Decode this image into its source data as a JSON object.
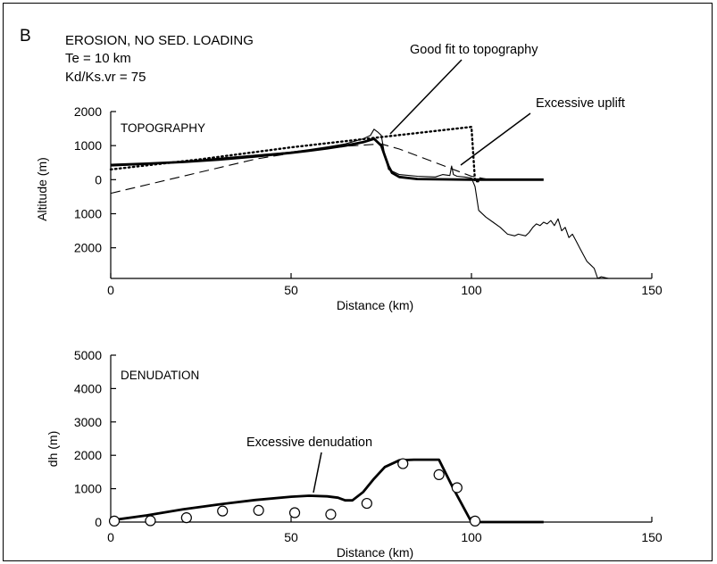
{
  "panel_label": "B",
  "header_lines": [
    "EROSION, NO SED. LOADING",
    "Te = 10 km",
    "Kd/Ks.vr = 75"
  ],
  "chart_data": [
    {
      "type": "line",
      "name": "TOPOGRAPHY",
      "panel_title": "TOPOGRAPHY",
      "xlabel": "Distance (km)",
      "ylabel": "Altitude (m)",
      "xlim": [
        0,
        150
      ],
      "ylim": [
        -2900,
        2000
      ],
      "x_ticks": [
        0,
        50,
        100,
        150
      ],
      "y_ticks": [
        2000,
        1000,
        0,
        -1000,
        -2000
      ],
      "y_tick_labels": [
        "2000",
        "1000",
        "0",
        "1000",
        "2000"
      ],
      "annotations": [
        "Good fit to topography",
        "Excessive uplift"
      ],
      "series": [
        {
          "style": "thin-solid",
          "x": [
            0,
            10,
            20,
            30,
            40,
            50,
            55,
            60,
            65,
            70,
            72,
            73,
            74,
            75,
            76,
            77,
            78,
            80,
            85,
            90,
            92,
            94,
            94.5,
            95,
            96,
            98,
            100,
            101,
            102,
            104,
            106,
            108,
            110,
            112,
            113,
            115,
            116,
            117,
            118,
            119,
            120,
            121,
            122,
            123,
            124,
            125,
            126,
            127,
            128,
            129,
            130,
            131,
            132,
            133,
            134,
            135,
            136,
            138,
            140
          ],
          "y": [
            400,
            450,
            530,
            630,
            720,
            810,
            880,
            960,
            1050,
            1200,
            1300,
            1480,
            1400,
            1300,
            700,
            300,
            250,
            150,
            100,
            80,
            150,
            120,
            400,
            150,
            100,
            80,
            50,
            -200,
            -900,
            -1100,
            -1250,
            -1400,
            -1600,
            -1650,
            -1600,
            -1650,
            -1550,
            -1400,
            -1300,
            -1350,
            -1250,
            -1300,
            -1200,
            -1350,
            -1150,
            -1500,
            -1400,
            -1700,
            -1600,
            -1800,
            -2000,
            -2200,
            -2400,
            -2500,
            -2600,
            -2900,
            -2850,
            -2900,
            -2900
          ]
        },
        {
          "style": "thick-solid",
          "x": [
            0,
            10,
            20,
            30,
            40,
            50,
            55,
            60,
            65,
            70,
            73,
            75,
            76,
            77,
            78,
            80,
            85,
            90,
            100,
            110,
            120
          ],
          "y": [
            430,
            470,
            520,
            590,
            680,
            790,
            850,
            920,
            1000,
            1100,
            1200,
            1000,
            700,
            400,
            200,
            80,
            20,
            10,
            0,
            0,
            0
          ]
        },
        {
          "style": "dotted",
          "x": [
            0,
            25,
            50,
            75,
            100,
            101,
            102
          ],
          "y": [
            300,
            600,
            950,
            1250,
            1550,
            -50,
            -50
          ]
        },
        {
          "style": "dashed",
          "x": [
            0,
            20,
            40,
            60,
            75,
            80,
            85,
            90,
            95,
            100,
            105
          ],
          "y": [
            -400,
            100,
            600,
            950,
            1050,
            900,
            700,
            500,
            300,
            100,
            0
          ]
        }
      ]
    },
    {
      "type": "line",
      "name": "DENUDATION",
      "panel_title": "DENUDATION",
      "xlabel": "Distance (km)",
      "ylabel": "dh (m)",
      "xlim": [
        0,
        150
      ],
      "ylim": [
        0,
        5000
      ],
      "x_ticks": [
        0,
        50,
        100,
        150
      ],
      "y_ticks": [
        0,
        1000,
        2000,
        3000,
        4000,
        5000
      ],
      "annotations": [
        "Excessive denudation"
      ],
      "series": [
        {
          "style": "thick-solid",
          "x": [
            0,
            10,
            20,
            30,
            40,
            50,
            55,
            60,
            63,
            65,
            67,
            70,
            73,
            76,
            80,
            84,
            88,
            91,
            95,
            100,
            110,
            120
          ],
          "y": [
            50,
            200,
            380,
            530,
            660,
            760,
            790,
            770,
            730,
            650,
            650,
            900,
            1300,
            1650,
            1850,
            1870,
            1870,
            1870,
            1000,
            0,
            0,
            0
          ]
        },
        {
          "style": "circles",
          "x": [
            1,
            11,
            21,
            31,
            41,
            51,
            61,
            71,
            81,
            91,
            96,
            101
          ],
          "y": [
            30,
            40,
            130,
            330,
            350,
            280,
            230,
            560,
            1750,
            1420,
            1030,
            30
          ]
        }
      ]
    }
  ]
}
